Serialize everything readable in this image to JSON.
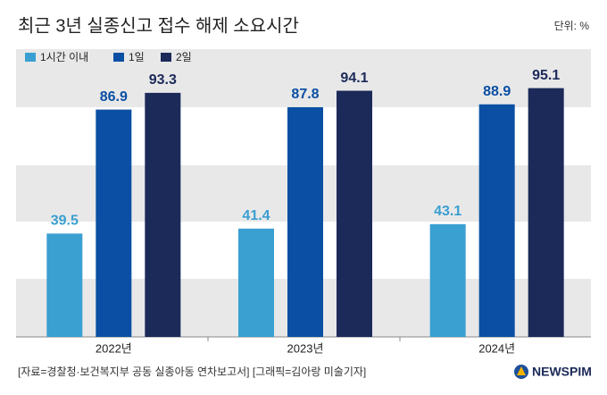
{
  "chart_data": {
    "type": "bar",
    "title": "최근 3년 실종신고 접수 해제 소요시간",
    "unit_label": "단위: %",
    "source": "[자료=경찰청·보건복지부 공동 실종아동 연차보고서] [그래픽=김아랑 미술기자]",
    "logo": "NEWSPIM",
    "categories": [
      "2022년",
      "2023년",
      "2024년"
    ],
    "series": [
      {
        "name": "1시간 이내",
        "color": "#3a9fd1",
        "values": [
          39.5,
          41.4,
          43.1
        ]
      },
      {
        "name": "1일",
        "color": "#0a4fa3",
        "values": [
          86.9,
          87.8,
          88.9
        ]
      },
      {
        "name": "2일",
        "color": "#1c2a5a",
        "values": [
          93.3,
          94.1,
          95.1
        ]
      }
    ],
    "ylim": [
      0,
      110
    ]
  }
}
